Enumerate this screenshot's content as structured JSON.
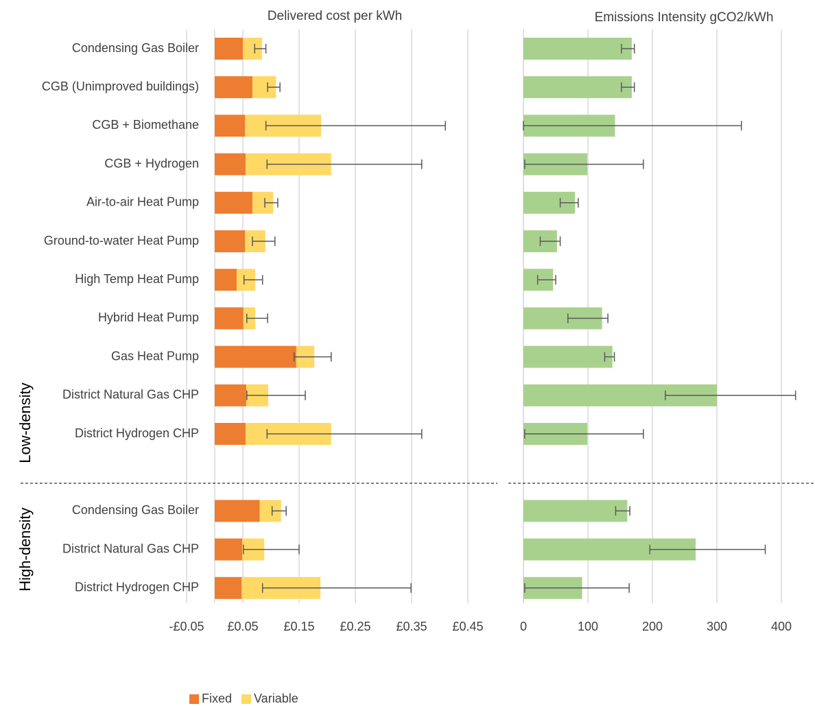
{
  "chart_data": [
    {
      "type": "bar",
      "orientation": "horizontal",
      "stacked": true,
      "title": "Delivered cost per kWh",
      "groups": [
        {
          "name": "Low-density",
          "categories": [
            "Condensing Gas Boiler",
            "CGB (Unimproved buildings)",
            "CGB + Biomethane",
            "CGB + Hydrogen",
            "Air-to-air Heat Pump",
            "Ground-to-water Heat Pump",
            "High Temp Heat Pump",
            "Hybrid Heat Pump",
            "Gas Heat Pump",
            "District Natural Gas CHP",
            "District Hydrogen CHP"
          ]
        },
        {
          "name": "High-density",
          "categories": [
            "Condensing Gas Boiler",
            "District Natural Gas CHP",
            "District Hydrogen CHP"
          ]
        }
      ],
      "series": [
        {
          "name": "Fixed",
          "color": "#ed7d31",
          "values": [
            0.05,
            0.067,
            0.054,
            0.055,
            0.067,
            0.054,
            0.039,
            0.051,
            0.145,
            0.056,
            0.055,
            0.08,
            0.049,
            0.048
          ]
        },
        {
          "name": "Variable",
          "color": "#ffd966",
          "values": [
            0.034,
            0.042,
            0.135,
            0.152,
            0.037,
            0.036,
            0.033,
            0.021,
            0.032,
            0.039,
            0.152,
            0.038,
            0.039,
            0.14
          ],
          "error_minus": [
            0.013,
            0.015,
            0.098,
            0.114,
            0.015,
            0.023,
            0.02,
            0.015,
            0.036,
            0.038,
            0.114,
            0.016,
            0.037,
            0.103
          ],
          "error_plus": [
            0.007,
            0.007,
            0.221,
            0.161,
            0.008,
            0.017,
            0.013,
            0.022,
            0.03,
            0.066,
            0.161,
            0.009,
            0.062,
            0.161
          ]
        }
      ],
      "xlim": [
        -0.05,
        0.5
      ],
      "xticks": [
        {
          "value": -0.05,
          "label": "-£0.05"
        },
        {
          "value": 0.05,
          "label": "£0.05"
        },
        {
          "value": 0.15,
          "label": "£0.15"
        },
        {
          "value": 0.25,
          "label": "£0.25"
        },
        {
          "value": 0.35,
          "label": "£0.35"
        },
        {
          "value": 0.45,
          "label": "£0.45"
        }
      ],
      "grid": true,
      "legend": "bottom"
    },
    {
      "type": "bar",
      "orientation": "horizontal",
      "title": "Emissions Intensity gCO2/kWh",
      "color": "#a9d18e",
      "values": [
        168,
        168,
        142,
        99,
        80,
        52,
        46,
        122,
        138,
        300,
        99,
        161,
        267,
        91
      ],
      "error_minus": [
        16,
        16,
        142,
        97,
        23,
        26,
        24,
        53,
        12,
        80,
        97,
        18,
        71,
        89
      ],
      "error_plus": [
        4,
        4,
        196,
        87,
        5,
        5,
        4,
        9,
        3,
        122,
        87,
        4,
        108,
        73
      ],
      "xlim": [
        0,
        450
      ],
      "xticks": [
        0,
        100,
        200,
        300,
        400
      ],
      "grid": true
    }
  ]
}
